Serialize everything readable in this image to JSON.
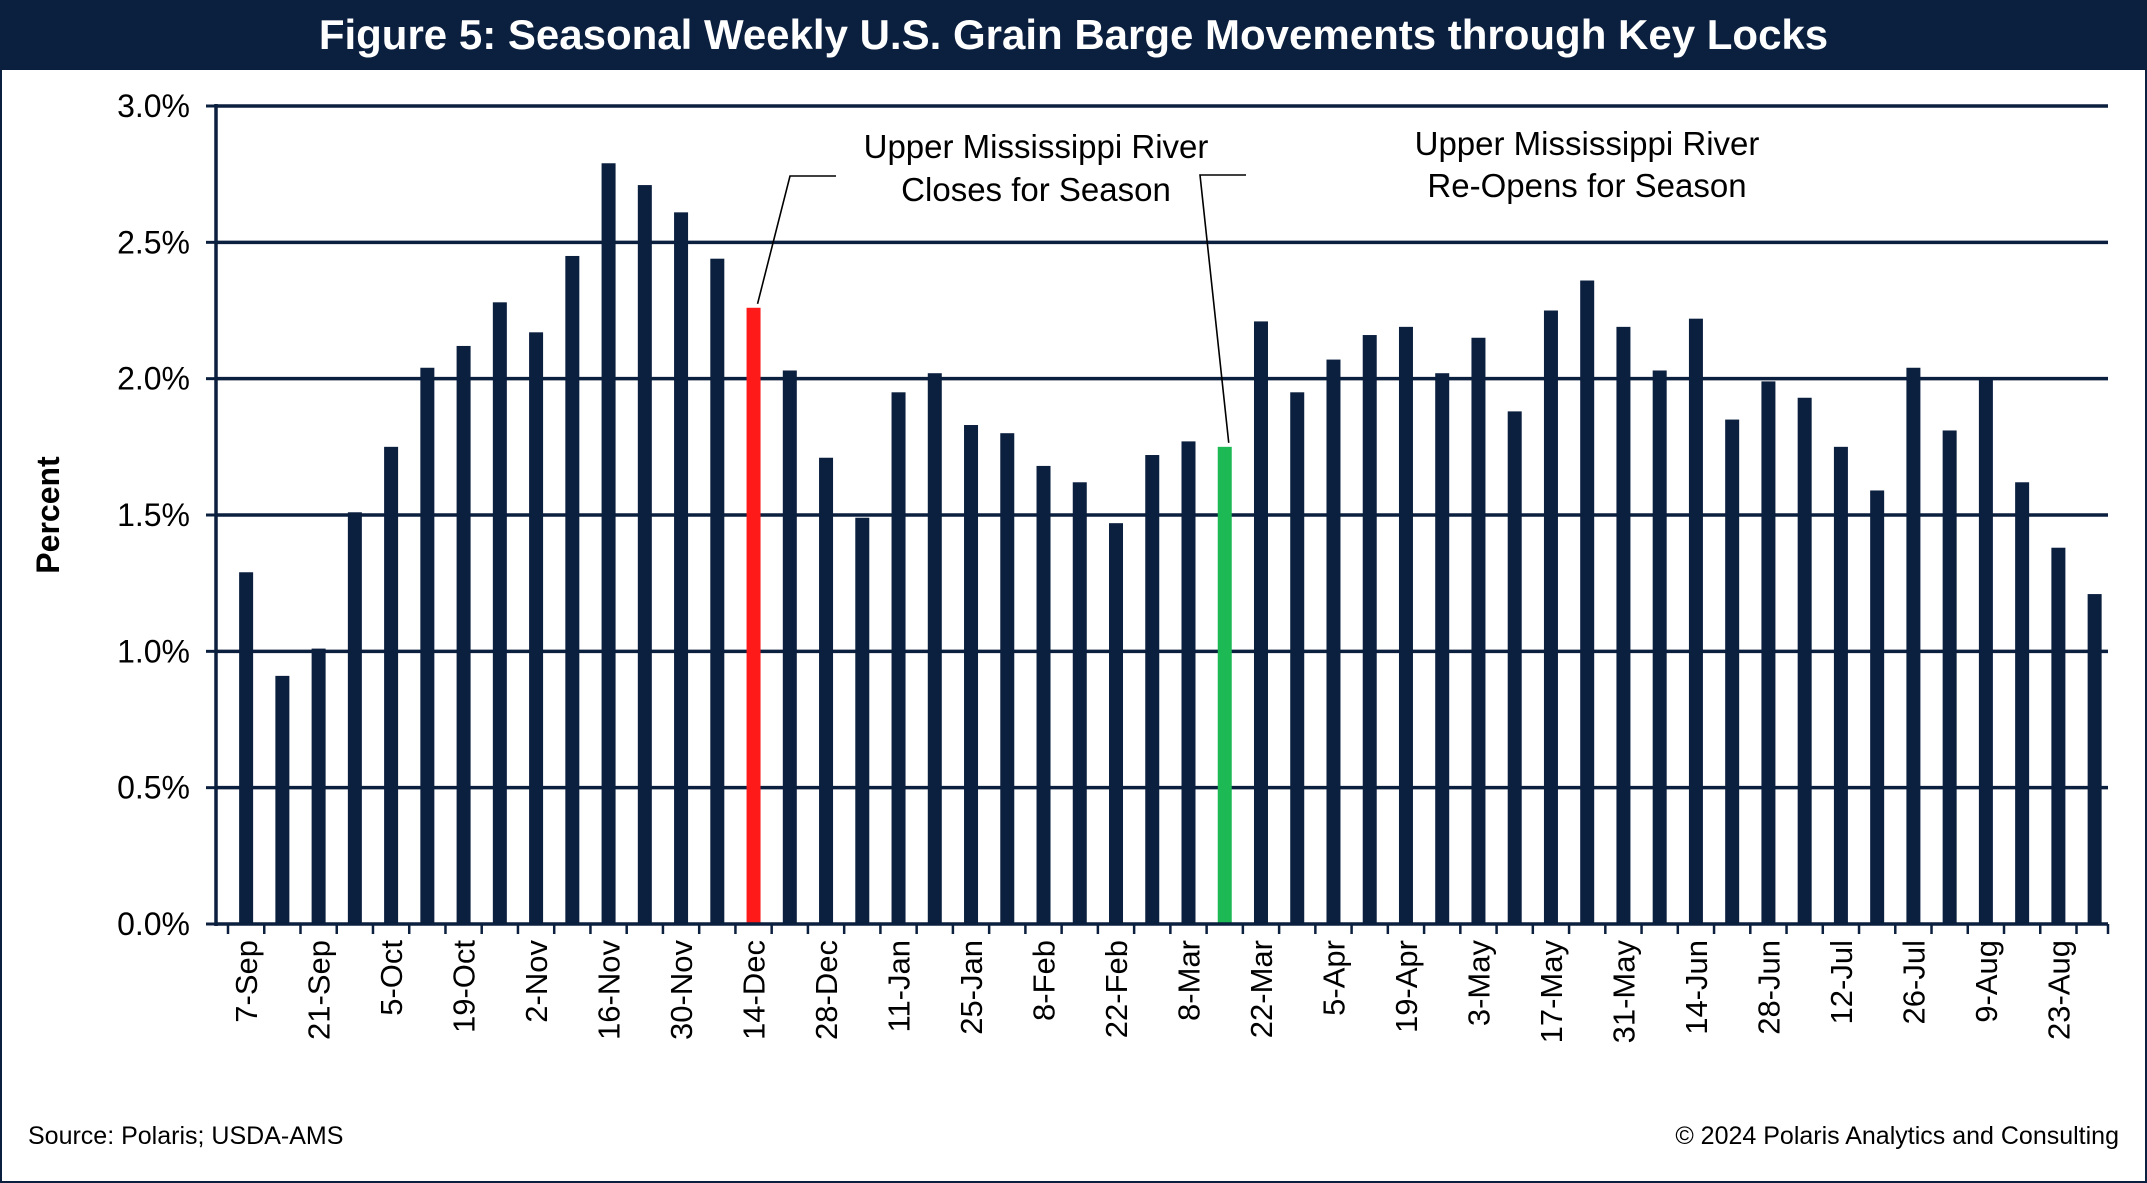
{
  "title": "Figure 5: Seasonal Weekly U.S. Grain Barge Movements through Key Locks",
  "source": "Source: Polaris; USDA-AMS",
  "copyright": "© 2024 Polaris Analytics and Consulting",
  "colors": {
    "bar": "#0b1f3f",
    "closes_bar": "#ff1a1a",
    "reopens_bar": "#1db954",
    "title_bg": "#0b1f3f"
  },
  "chart_data": {
    "type": "bar",
    "ylabel": "Percent",
    "xlabel": "",
    "ylim": [
      0,
      3.0
    ],
    "ytick_labels": [
      "0.0%",
      "0.5%",
      "1.0%",
      "1.5%",
      "2.0%",
      "2.5%",
      "3.0%"
    ],
    "grid": "horizontal",
    "x_tick_labels": [
      "7-Sep",
      "21-Sep",
      "5-Oct",
      "19-Oct",
      "2-Nov",
      "16-Nov",
      "30-Nov",
      "14-Dec",
      "28-Dec",
      "11-Jan",
      "25-Jan",
      "8-Feb",
      "22-Feb",
      "8-Mar",
      "22-Mar",
      "5-Apr",
      "19-Apr",
      "3-May",
      "17-May",
      "31-May",
      "14-Jun",
      "28-Jun",
      "12-Jul",
      "26-Jul",
      "9-Aug",
      "23-Aug"
    ],
    "values": [
      1.29,
      0.91,
      1.01,
      1.51,
      1.75,
      2.04,
      2.12,
      2.28,
      2.17,
      2.45,
      2.79,
      2.71,
      2.61,
      2.44,
      2.26,
      2.03,
      1.71,
      1.49,
      1.95,
      2.02,
      1.83,
      1.8,
      1.68,
      1.62,
      1.47,
      1.72,
      1.77,
      1.75,
      2.21,
      1.95,
      2.07,
      2.16,
      2.19,
      2.02,
      2.15,
      1.88,
      2.25,
      2.36,
      2.19,
      2.03,
      2.22,
      1.85,
      1.99,
      1.93,
      1.75,
      1.59,
      2.04,
      1.81,
      2.0,
      1.62,
      1.38,
      1.21
    ],
    "highlights": [
      {
        "index": 14,
        "color": "#ff1a1a"
      },
      {
        "index": 27,
        "color": "#1db954"
      }
    ],
    "annotations": [
      {
        "bar_index": 14,
        "lines": [
          "Upper Mississippi River",
          "Closes for Season"
        ]
      },
      {
        "bar_index": 27,
        "lines": [
          "Upper Mississippi River",
          "Re-Opens for Season"
        ]
      }
    ]
  }
}
